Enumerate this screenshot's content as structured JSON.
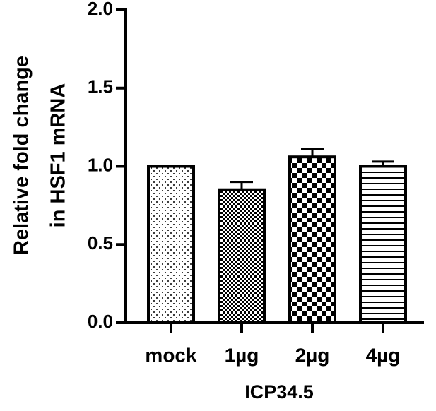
{
  "chart_data": {
    "type": "bar",
    "ylabel": [
      "Relative fold change",
      "in HSF1 mRNA"
    ],
    "xlabel": "ICP34.5",
    "categories": [
      "mock",
      "1µg",
      "2µg",
      "4µg"
    ],
    "values": [
      1.0,
      0.85,
      1.06,
      1.0
    ],
    "errors": [
      0,
      0.05,
      0.05,
      0.03
    ],
    "patterns": [
      "dots",
      "checker-small",
      "checker-large",
      "hlines"
    ],
    "color": "#000000",
    "ylim": [
      0,
      2.0
    ],
    "yticks": [
      {
        "value": 0,
        "label": "0.0"
      },
      {
        "value": 0.5,
        "label": "0.5"
      },
      {
        "value": 1.0,
        "label": "1.0"
      },
      {
        "value": 1.5,
        "label": "1.5"
      },
      {
        "value": 2.0,
        "label": "2.0"
      }
    ]
  }
}
